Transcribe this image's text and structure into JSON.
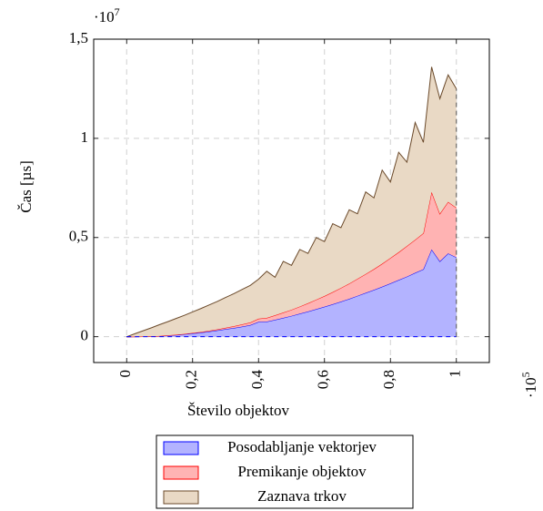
{
  "chart_data": {
    "type": "stacked_area",
    "xlabel": "Število objektov",
    "ylabel": "Čas [µs]",
    "x_scale_label": {
      "base": "·10",
      "exponent": "5"
    },
    "y_scale_label": {
      "base": "·10",
      "exponent": "7"
    },
    "xlim": [
      -0.1,
      1.1
    ],
    "ylim": [
      -0.13,
      1.5
    ],
    "xticks": [
      0,
      {
        "value": 0.2,
        "label": "0,2"
      },
      {
        "value": 0.4,
        "label": "0,4"
      },
      {
        "value": 0.6,
        "label": "0,6"
      },
      {
        "value": 0.8,
        "label": "0,8"
      },
      1
    ],
    "yticks": [
      0,
      {
        "value": 0.5,
        "label": "0,5"
      },
      1,
      {
        "value": 1.5,
        "label": "1,5"
      }
    ],
    "grid": true,
    "legend": "bottom",
    "x": [
      0,
      0.025,
      0.05,
      0.075,
      0.1,
      0.125,
      0.15,
      0.175,
      0.2,
      0.225,
      0.25,
      0.275,
      0.3,
      0.325,
      0.35,
      0.375,
      0.4,
      0.425,
      0.45,
      0.475,
      0.5,
      0.525,
      0.55,
      0.575,
      0.6,
      0.625,
      0.65,
      0.675,
      0.7,
      0.725,
      0.75,
      0.775,
      0.8,
      0.825,
      0.85,
      0.875,
      0.9,
      0.925,
      0.95,
      0.975,
      1
    ],
    "series": [
      {
        "name": "Posodabljanje vektorjev",
        "color": "#0000ff",
        "fill": "#b3b3ff",
        "values": [
          0,
          0.0003,
          0.001,
          0.002,
          0.004,
          0.007,
          0.009,
          0.013,
          0.017,
          0.021,
          0.026,
          0.032,
          0.038,
          0.044,
          0.051,
          0.059,
          0.075,
          0.076,
          0.085,
          0.095,
          0.105,
          0.116,
          0.127,
          0.139,
          0.151,
          0.164,
          0.177,
          0.191,
          0.206,
          0.221,
          0.236,
          0.252,
          0.269,
          0.286,
          0.303,
          0.322,
          0.34,
          0.44,
          0.38,
          0.42,
          0.4
        ]
      },
      {
        "name": "Premikanje objektov",
        "color": "#ff0000",
        "fill": "#ffb3b3",
        "values": [
          0,
          0,
          0,
          0,
          0,
          0,
          0.001,
          0.001,
          0.002,
          0.003,
          0.004,
          0.005,
          0.007,
          0.009,
          0.011,
          0.013,
          0.016,
          0.019,
          0.023,
          0.027,
          0.031,
          0.036,
          0.042,
          0.048,
          0.054,
          0.061,
          0.069,
          0.077,
          0.086,
          0.095,
          0.105,
          0.116,
          0.128,
          0.14,
          0.154,
          0.167,
          0.182,
          0.29,
          0.24,
          0.26,
          0.25
        ]
      },
      {
        "name": "Zaznava trkov",
        "color": "#6b4a2b",
        "fill": "#e9d9c5",
        "values": [
          0,
          0.015,
          0.029,
          0.043,
          0.057,
          0.069,
          0.082,
          0.094,
          0.106,
          0.118,
          0.13,
          0.141,
          0.153,
          0.164,
          0.176,
          0.187,
          0.199,
          0.235,
          0.192,
          0.258,
          0.224,
          0.288,
          0.251,
          0.313,
          0.275,
          0.345,
          0.304,
          0.372,
          0.328,
          0.414,
          0.359,
          0.472,
          0.383,
          0.504,
          0.423,
          0.591,
          0.458,
          0.63,
          0.58,
          0.64,
          0.6
        ]
      }
    ]
  }
}
